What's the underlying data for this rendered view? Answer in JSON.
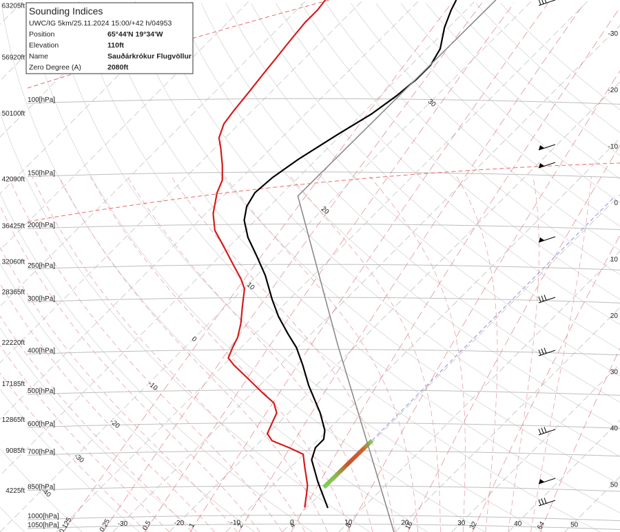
{
  "info_box": {
    "title": "Sounding Indices",
    "subtitle": "UWC/IG 5km/25.11.2024 15:00/+42 h/04953",
    "rows": [
      [
        "Position",
        "65°44'N 19°34'W"
      ],
      [
        "Elevation",
        "110ft"
      ],
      [
        "Name",
        "Sauðárkrókur Flugvöllur"
      ],
      [
        "Zero Degree (A)",
        "2080ft"
      ]
    ]
  },
  "chart_data": {
    "type": "skewt",
    "log_y": true,
    "skew": 45,
    "ylim": [
      1070,
      56.5
    ],
    "yticks": [
      {
        "value": 1050,
        "label": "1050[hPa]"
      },
      {
        "value": 1000,
        "label": "1000[hPa]"
      },
      {
        "value": 850,
        "label": "850[hPa]"
      },
      {
        "value": 700,
        "label": "700[hPa]"
      },
      {
        "value": 600,
        "label": "600[hPa]"
      },
      {
        "value": 500,
        "label": "500[hPa]"
      },
      {
        "value": 400,
        "label": "400[hPa]"
      },
      {
        "value": 300,
        "label": "300[hPa]"
      },
      {
        "value": 250,
        "label": "250[hPa]"
      },
      {
        "value": 200,
        "label": "200[hPa]"
      },
      {
        "value": 150,
        "label": "150[hPa]"
      },
      {
        "value": 100,
        "label": "100[hPa]"
      }
    ],
    "y2lim": [
      -880,
      63830
    ],
    "y2ticks": [
      {
        "value": 4225,
        "label": "4225ft"
      },
      {
        "value": 9085,
        "label": "9085ft"
      },
      {
        "value": 12865,
        "label": "12865ft"
      },
      {
        "value": 17185,
        "label": "17185ft"
      },
      {
        "value": 22220,
        "label": "22220ft"
      },
      {
        "value": 28365,
        "label": "28365ft"
      },
      {
        "value": 32060,
        "label": "32060ft"
      },
      {
        "value": 36425,
        "label": "36425ft"
      },
      {
        "value": 42090,
        "label": "42090ft"
      },
      {
        "value": 50100,
        "label": "50100ft"
      },
      {
        "value": 56920,
        "label": "56920ft"
      },
      {
        "value": 63205,
        "label": "63205ft"
      }
    ],
    "xlim": [
      -50,
      59.8
    ],
    "xticks": [
      -30,
      -20,
      -10,
      0,
      10,
      20,
      30,
      40,
      50
    ],
    "grid": true,
    "series": [
      {
        "color": "#000000",
        "y": [
          937,
          811,
          718,
          671,
          641,
          610,
          554,
          476,
          425,
          386,
          358,
          325,
          296,
          259,
          231,
          210,
          191,
          177,
          164,
          151,
          136,
          119,
          106,
          96,
          87.5,
          81,
          74,
          65.8,
          59.8,
          56.5
        ],
        "x": [
          3.8,
          -2.6,
          -7.6,
          -9.1,
          -9.1,
          -10.5,
          -14.4,
          -21.3,
          -26.0,
          -30.2,
          -34.1,
          -38.9,
          -43.0,
          -48.5,
          -53.8,
          -58.3,
          -62.0,
          -64.0,
          -65.0,
          -64.6,
          -63.2,
          -60.7,
          -58.3,
          -57.1,
          -56.5,
          -56.5,
          -57.7,
          -60.7,
          -62.6,
          -63.5
        ]
      },
      {
        "color": "#d51a1a",
        "y": [
          934,
          875,
          827,
          781,
          746,
          696,
          671,
          646,
          621,
          587,
          554,
          524,
          494,
          458,
          425,
          409,
          386,
          365,
          338,
          307,
          279,
          264,
          245,
          222,
          202,
          184,
          164,
          153,
          141,
          128,
          121,
          112,
          104,
          94,
          86,
          78,
          71,
          64,
          59.7,
          56.5
        ],
        "x": [
          -0.4,
          -2.2,
          -3.8,
          -5.9,
          -7.6,
          -10.1,
          -13.8,
          -18.0,
          -20.1,
          -21.1,
          -22.1,
          -24.4,
          -28.4,
          -33.3,
          -38.2,
          -40.4,
          -41.5,
          -42.4,
          -44.3,
          -47.1,
          -49.8,
          -52.2,
          -55.9,
          -60.7,
          -65.4,
          -68.7,
          -71.7,
          -73.0,
          -75.6,
          -79.0,
          -81.1,
          -82.7,
          -83.3,
          -83.9,
          -84.5,
          -85.1,
          -85.7,
          -86.3,
          -86.3,
          -86.7
        ]
      },
      {
        "color": "#8a8a8a",
        "y": [
          1071,
          752,
          379,
          167,
          56.5
        ],
        "x": [
          19.8,
          5.1,
          -23.5,
          -56.8,
          -56.5
        ]
      }
    ],
    "mixing_ratio_color": "#e0707a",
    "mixing_ratio_labels": [
      0.125,
      0.25,
      0.5,
      1,
      2,
      4,
      8,
      16,
      32,
      64
    ],
    "adiabat_labels": [
      -40,
      -30,
      -20,
      -10,
      0,
      10,
      20,
      30
    ]
  }
}
